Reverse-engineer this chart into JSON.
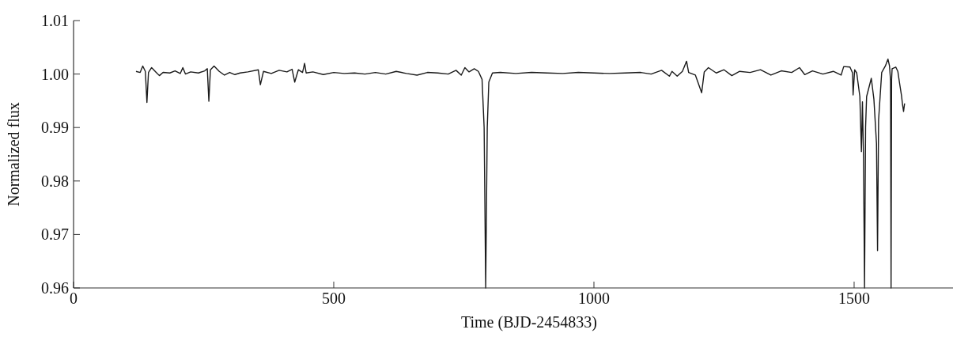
{
  "chart_data": {
    "type": "line",
    "xlabel": "Time (BJD-2454833)",
    "ylabel": "Normalized flux",
    "xlim": [
      0,
      1690
    ],
    "xticks": [
      0,
      500,
      1000,
      1500
    ],
    "ylim": [
      0.96,
      1.01
    ],
    "yticks": [
      0.96,
      0.97,
      0.98,
      0.99,
      {
        "value": 1.0,
        "label": "1.00"
      },
      1.01
    ],
    "grid": false,
    "marker": "none",
    "line_style": "solid",
    "series": [
      {
        "color": "#1a1a1a",
        "x": [
          120,
          128,
          133,
          138,
          141,
          144,
          150,
          158,
          165,
          172,
          185,
          195,
          205,
          210,
          215,
          225,
          240,
          252,
          257,
          260,
          263,
          270,
          280,
          290,
          300,
          310,
          320,
          335,
          355,
          359,
          365,
          380,
          395,
          410,
          420,
          425,
          432,
          440,
          444,
          447,
          460,
          480,
          500,
          520,
          540,
          560,
          580,
          600,
          620,
          640,
          660,
          680,
          700,
          720,
          735,
          745,
          752,
          760,
          770,
          778,
          785,
          789,
          792,
          795,
          798,
          805,
          820,
          850,
          880,
          910,
          940,
          970,
          1000,
          1030,
          1060,
          1090,
          1110,
          1130,
          1145,
          1150,
          1160,
          1170,
          1178,
          1182,
          1195,
          1207,
          1212,
          1220,
          1235,
          1250,
          1265,
          1280,
          1300,
          1320,
          1340,
          1360,
          1380,
          1395,
          1405,
          1420,
          1440,
          1460,
          1475,
          1480,
          1492,
          1497,
          1498,
          1501,
          1505,
          1511,
          1514,
          1516,
          1518,
          1520,
          1522,
          1524,
          1533,
          1538,
          1543,
          1545,
          1547,
          1553,
          1560,
          1565,
          1568,
          1570,
          1571,
          1572,
          1573,
          1580,
          1584,
          1587,
          1591,
          1593,
          1595,
          1597
        ],
        "values": [
          1.0005,
          1.0003,
          1.0015,
          1.0005,
          0.9947,
          1.0003,
          1.0012,
          1.0004,
          0.9997,
          1.0003,
          1.0002,
          1.0006,
          1.0001,
          1.0012,
          1.0,
          1.0004,
          1.0002,
          1.0006,
          1.001,
          0.9949,
          1.0008,
          1.0015,
          1.0005,
          0.9998,
          1.0003,
          0.9999,
          1.0002,
          1.0004,
          1.0008,
          0.998,
          1.0005,
          1.0001,
          1.0007,
          1.0004,
          1.0009,
          0.9985,
          1.0008,
          1.0003,
          1.002,
          1.0002,
          1.0004,
          0.9999,
          1.0003,
          1.0001,
          1.0002,
          1.0,
          1.0003,
          1.0,
          1.0005,
          1.0001,
          0.9998,
          1.0003,
          1.0002,
          1.0,
          1.0007,
          0.9998,
          1.0012,
          1.0004,
          1.001,
          1.0005,
          0.999,
          0.99,
          0.96,
          0.99,
          0.9985,
          1.0002,
          1.0003,
          1.0001,
          1.0003,
          1.0002,
          1.0001,
          1.0003,
          1.0002,
          1.0001,
          1.0002,
          1.0003,
          1.0,
          1.0007,
          0.9996,
          1.0005,
          0.9996,
          1.0005,
          1.0024,
          1.0003,
          0.9998,
          0.9965,
          1.0004,
          1.0012,
          1.0002,
          1.0008,
          0.9997,
          1.0005,
          1.0003,
          1.0008,
          0.9998,
          1.0006,
          1.0003,
          1.0012,
          0.9999,
          1.0006,
          1.0,
          1.0005,
          0.9998,
          1.0014,
          1.0013,
          1.0002,
          0.9961,
          1.0008,
          1.0002,
          0.9958,
          0.9855,
          0.9948,
          0.9844,
          0.96,
          0.99,
          0.9958,
          0.9992,
          0.9953,
          0.987,
          0.967,
          0.9914,
          1.0003,
          1.0015,
          1.0028,
          1.0015,
          0.9988,
          0.96,
          0.999,
          1.001,
          1.0013,
          1.0005,
          0.9985,
          0.996,
          0.9943,
          0.993,
          0.9945
        ]
      }
    ]
  }
}
